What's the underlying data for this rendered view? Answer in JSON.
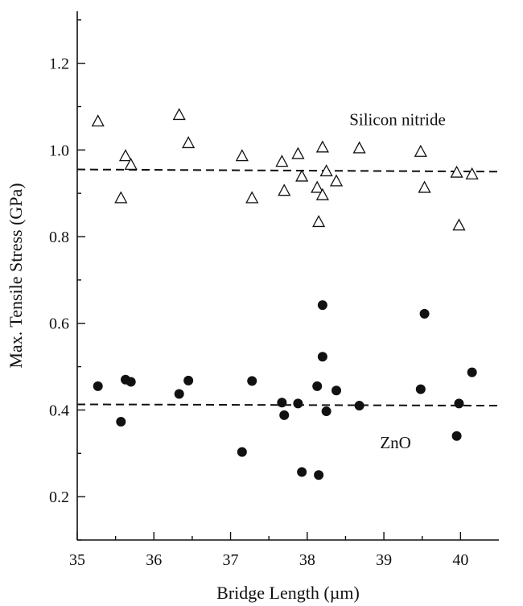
{
  "chart_data": {
    "type": "scatter",
    "xlabel": "Bridge Length (µm)",
    "ylabel": "Max. Tensile Stress (GPa)",
    "xlim": [
      35,
      40.5
    ],
    "ylim": [
      0.1,
      1.32
    ],
    "x_ticks": [
      "35",
      "36",
      "37",
      "38",
      "39",
      "40"
    ],
    "y_ticks": [
      "0.2",
      "0.4",
      "0.6",
      "0.8",
      "1.0",
      "1.2"
    ],
    "x_tick_values": [
      35,
      36,
      37,
      38,
      39,
      40
    ],
    "y_tick_values": [
      0.2,
      0.4,
      0.6,
      0.8,
      1.0,
      1.2
    ],
    "grid": false,
    "annotations": [
      "Silicon nitride",
      "ZnO"
    ],
    "series": [
      {
        "name": "Silicon nitride",
        "marker": "open-triangle",
        "points": [
          {
            "x": 35.27,
            "y": 1.065
          },
          {
            "x": 35.57,
            "y": 0.888
          },
          {
            "x": 35.63,
            "y": 0.985
          },
          {
            "x": 35.7,
            "y": 0.965
          },
          {
            "x": 36.33,
            "y": 1.08
          },
          {
            "x": 36.45,
            "y": 1.015
          },
          {
            "x": 37.15,
            "y": 0.985
          },
          {
            "x": 37.28,
            "y": 0.888
          },
          {
            "x": 37.67,
            "y": 0.972
          },
          {
            "x": 37.7,
            "y": 0.905
          },
          {
            "x": 37.88,
            "y": 0.99
          },
          {
            "x": 37.93,
            "y": 0.938
          },
          {
            "x": 38.13,
            "y": 0.912
          },
          {
            "x": 38.15,
            "y": 0.833
          },
          {
            "x": 38.2,
            "y": 1.005
          },
          {
            "x": 38.2,
            "y": 0.895
          },
          {
            "x": 38.25,
            "y": 0.95
          },
          {
            "x": 38.38,
            "y": 0.927
          },
          {
            "x": 38.68,
            "y": 1.003
          },
          {
            "x": 39.48,
            "y": 0.995
          },
          {
            "x": 39.53,
            "y": 0.912
          },
          {
            "x": 39.95,
            "y": 0.947
          },
          {
            "x": 39.98,
            "y": 0.825
          },
          {
            "x": 40.15,
            "y": 0.943
          }
        ]
      },
      {
        "name": "ZnO",
        "marker": "filled-circle",
        "points": [
          {
            "x": 35.27,
            "y": 0.455
          },
          {
            "x": 35.57,
            "y": 0.373
          },
          {
            "x": 35.63,
            "y": 0.47
          },
          {
            "x": 35.7,
            "y": 0.465
          },
          {
            "x": 36.33,
            "y": 0.437
          },
          {
            "x": 36.45,
            "y": 0.468
          },
          {
            "x": 37.15,
            "y": 0.303
          },
          {
            "x": 37.28,
            "y": 0.467
          },
          {
            "x": 37.67,
            "y": 0.417
          },
          {
            "x": 37.7,
            "y": 0.388
          },
          {
            "x": 37.88,
            "y": 0.415
          },
          {
            "x": 37.93,
            "y": 0.257
          },
          {
            "x": 38.13,
            "y": 0.455
          },
          {
            "x": 38.15,
            "y": 0.25
          },
          {
            "x": 38.2,
            "y": 0.642
          },
          {
            "x": 38.2,
            "y": 0.523
          },
          {
            "x": 38.25,
            "y": 0.397
          },
          {
            "x": 38.38,
            "y": 0.445
          },
          {
            "x": 38.68,
            "y": 0.41
          },
          {
            "x": 39.48,
            "y": 0.448
          },
          {
            "x": 39.53,
            "y": 0.622
          },
          {
            "x": 39.95,
            "y": 0.34
          },
          {
            "x": 39.98,
            "y": 0.415
          },
          {
            "x": 40.15,
            "y": 0.487
          }
        ]
      }
    ],
    "reference_lines": [
      {
        "series": "Silicon nitride",
        "style": "dashed",
        "x": [
          35,
          40.5
        ],
        "y": [
          0.955,
          0.95
        ]
      },
      {
        "series": "ZnO",
        "style": "dashed",
        "x": [
          35,
          40.5
        ],
        "y": [
          0.413,
          0.41
        ]
      }
    ]
  }
}
